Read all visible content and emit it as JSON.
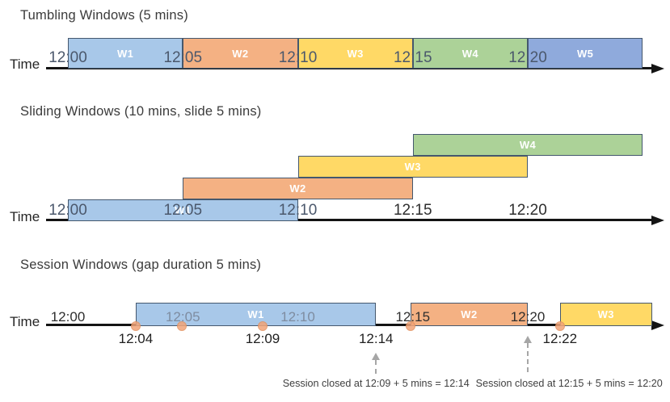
{
  "colors": {
    "blue": "#A8C8E9",
    "orange": "#F4B183",
    "yellow": "#FFD966",
    "green": "#ACD298",
    "indigo": "#8FAADC",
    "box_border": "#45586E",
    "dot_fill": "#F1A478",
    "dot_border": "#E2915F",
    "axis_black": "#141414",
    "tick_on_box": "#4B586C",
    "tick_muted": "#7E8CA0",
    "tick_dark": "#2E2E2E",
    "arrow_gray": "#A6A6A6"
  },
  "sections": [
    {
      "title": "Tumbling Windows (5 mins)",
      "axis_label": "Time",
      "windows": [
        {
          "label": "W1",
          "start_min": 0,
          "end_min": 5,
          "color_key": "blue"
        },
        {
          "label": "W2",
          "start_min": 5,
          "end_min": 10,
          "color_key": "orange"
        },
        {
          "label": "W3",
          "start_min": 10,
          "end_min": 15,
          "color_key": "yellow"
        },
        {
          "label": "W4",
          "start_min": 15,
          "end_min": 20,
          "color_key": "green"
        },
        {
          "label": "W5",
          "start_min": 20,
          "end_min": 25,
          "color_key": "indigo"
        }
      ],
      "ticks": [
        {
          "label": "12:00",
          "min": 0,
          "tone": "box"
        },
        {
          "label": "12:05",
          "min": 5,
          "tone": "box"
        },
        {
          "label": "12:10",
          "min": 10,
          "tone": "box"
        },
        {
          "label": "12:15",
          "min": 15,
          "tone": "box"
        },
        {
          "label": "12:20",
          "min": 20,
          "tone": "box"
        }
      ]
    },
    {
      "title": "Sliding Windows (10 mins, slide 5 mins)",
      "axis_label": "Time",
      "windows": [
        {
          "label": "W1",
          "start_min": 0,
          "end_min": 10,
          "lane": 0,
          "color_key": "blue"
        },
        {
          "label": "W2",
          "start_min": 5,
          "end_min": 15,
          "lane": 1,
          "color_key": "orange"
        },
        {
          "label": "W3",
          "start_min": 10,
          "end_min": 20,
          "lane": 2,
          "color_key": "yellow"
        },
        {
          "label": "W4",
          "start_min": 15,
          "end_min": 25,
          "lane": 3,
          "color_key": "green"
        }
      ],
      "ticks": [
        {
          "label": "12:00",
          "min": 0,
          "tone": "box"
        },
        {
          "label": "12:05",
          "min": 5,
          "tone": "box"
        },
        {
          "label": "12:10",
          "min": 10,
          "tone": "box"
        },
        {
          "label": "12:15",
          "min": 15,
          "tone": "dark"
        },
        {
          "label": "12:20",
          "min": 20,
          "tone": "dark"
        }
      ]
    },
    {
      "title": "Session Windows (gap duration 5 mins)",
      "axis_label": "Time",
      "windows": [
        {
          "label": "W1",
          "start_min": 2.95,
          "end_min": 13.4,
          "color_key": "blue"
        },
        {
          "label": "W2",
          "start_min": 14.9,
          "end_min": 20,
          "color_key": "orange"
        },
        {
          "label": "W3",
          "start_min": 21.4,
          "end_min": 25.4,
          "color_key": "yellow"
        }
      ],
      "ticks": [
        {
          "label": "12:00",
          "min": 0,
          "tone": "dark"
        },
        {
          "label": "12:05",
          "min": 5,
          "tone": "muted"
        },
        {
          "label": "12:10",
          "min": 10,
          "tone": "muted"
        },
        {
          "label": "12:15",
          "min": 15,
          "tone": "dark"
        },
        {
          "label": "12:20",
          "min": 20,
          "tone": "dark"
        }
      ],
      "events": [
        {
          "min": 2.95
        },
        {
          "min": 4.96
        },
        {
          "min": 8.47
        },
        {
          "min": 14.9
        },
        {
          "min": 21.4
        }
      ],
      "event_labels": [
        {
          "label": "12:04",
          "min": 2.95
        },
        {
          "label": "12:09",
          "min": 8.47
        },
        {
          "label": "12:14",
          "min": 13.4
        },
        {
          "label": "12:22",
          "min": 21.4
        }
      ],
      "callouts": [
        {
          "text": "Session closed at 12:09 + 5 mins = 12:14",
          "arrow_min": 13.4,
          "text_min": 13.4
        },
        {
          "text": "Session closed at 12:15 + 5 mins = 12:20",
          "arrow_min": 20,
          "text_min": 21.8
        }
      ]
    }
  ]
}
